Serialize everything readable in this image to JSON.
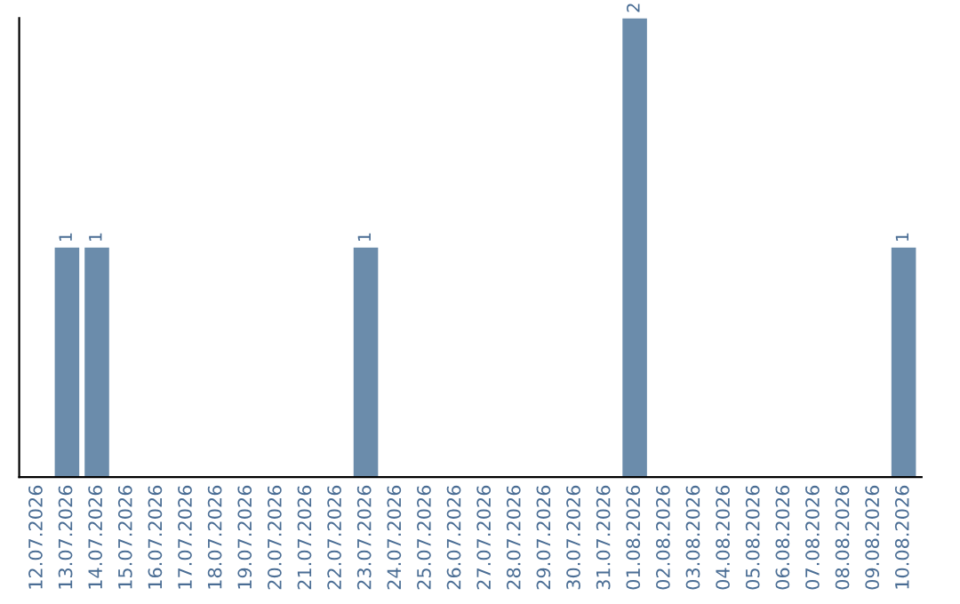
{
  "chart_data": {
    "type": "bar",
    "categories": [
      "12.07.2026",
      "13.07.2026",
      "14.07.2026",
      "15.07.2026",
      "16.07.2026",
      "17.07.2026",
      "18.07.2026",
      "19.07.2026",
      "20.07.2026",
      "21.07.2026",
      "22.07.2026",
      "23.07.2026",
      "24.07.2026",
      "25.07.2026",
      "26.07.2026",
      "27.07.2026",
      "28.07.2026",
      "29.07.2026",
      "30.07.2026",
      "31.07.2026",
      "01.08.2026",
      "02.08.2026",
      "03.08.2026",
      "04.08.2026",
      "05.08.2026",
      "06.08.2026",
      "07.08.2026",
      "08.08.2026",
      "09.08.2026",
      "10.08.2026"
    ],
    "values": [
      0,
      1,
      1,
      0,
      0,
      0,
      0,
      0,
      0,
      0,
      0,
      1,
      0,
      0,
      0,
      0,
      0,
      0,
      0,
      0,
      2,
      0,
      0,
      0,
      0,
      0,
      0,
      0,
      0,
      1
    ],
    "value_labels": [
      null,
      "1",
      "1",
      null,
      null,
      null,
      null,
      null,
      null,
      null,
      null,
      "1",
      null,
      null,
      null,
      null,
      null,
      null,
      null,
      null,
      "2",
      null,
      null,
      null,
      null,
      null,
      null,
      null,
      null,
      "1"
    ],
    "color": "#6b8cab",
    "tick_labels": "x",
    "grid": false,
    "legend": false
  }
}
